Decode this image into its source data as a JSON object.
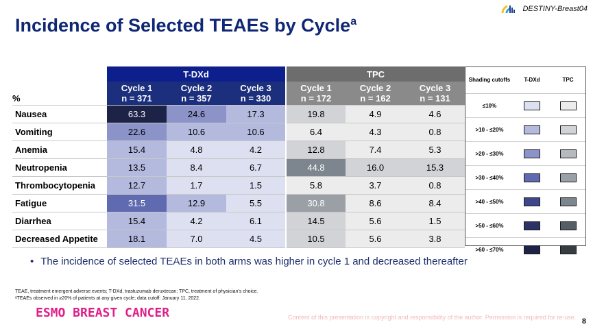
{
  "brand": {
    "name": "DESTINY-Breast04",
    "logo_colors": [
      "#f2c22e",
      "#3aa0d8",
      "#1a3d8f"
    ]
  },
  "title": {
    "main": "Incidence of Selected TEAEs by Cycle",
    "superscript": "a"
  },
  "table": {
    "unit_label": "%",
    "arms": [
      {
        "name": "T-DXd",
        "cycles": [
          {
            "label": "Cycle 1",
            "n": "n = 371"
          },
          {
            "label": "Cycle 2",
            "n": "n = 357"
          },
          {
            "label": "Cycle 3",
            "n": "n = 330"
          }
        ]
      },
      {
        "name": "TPC",
        "cycles": [
          {
            "label": "Cycle 1",
            "n": "n = 172"
          },
          {
            "label": "Cycle 2",
            "n": "n = 162"
          },
          {
            "label": "Cycle 3",
            "n": "n = 131"
          }
        ]
      }
    ],
    "rows": [
      {
        "event": "Nausea",
        "tdxd": [
          "63.3",
          "24.6",
          "17.3"
        ],
        "tpc": [
          "19.8",
          "4.9",
          "4.6"
        ]
      },
      {
        "event": "Vomiting",
        "tdxd": [
          "22.6",
          "10.6",
          "10.6"
        ],
        "tpc": [
          "6.4",
          "4.3",
          "0.8"
        ]
      },
      {
        "event": "Anemia",
        "tdxd": [
          "15.4",
          "4.8",
          "4.2"
        ],
        "tpc": [
          "12.8",
          "7.4",
          "5.3"
        ]
      },
      {
        "event": "Neutropenia",
        "tdxd": [
          "13.5",
          "8.4",
          "6.7"
        ],
        "tpc": [
          "44.8",
          "16.0",
          "15.3"
        ]
      },
      {
        "event": "Thrombocytopenia",
        "tdxd": [
          "12.7",
          "1.7",
          "1.5"
        ],
        "tpc": [
          "5.8",
          "3.7",
          "0.8"
        ]
      },
      {
        "event": "Fatigue",
        "tdxd": [
          "31.5",
          "12.9",
          "5.5"
        ],
        "tpc": [
          "30.8",
          "8.6",
          "8.4"
        ]
      },
      {
        "event": "Diarrhea",
        "tdxd": [
          "15.4",
          "4.2",
          "6.1"
        ],
        "tpc": [
          "14.5",
          "5.6",
          "1.5"
        ]
      },
      {
        "event": "Decreased Appetite",
        "tdxd": [
          "18.1",
          "7.0",
          "4.5"
        ],
        "tpc": [
          "10.5",
          "5.6",
          "3.8"
        ]
      }
    ]
  },
  "legend": {
    "headers": [
      "Shading cutoffs",
      "T-DXd",
      "TPC"
    ],
    "rows": [
      {
        "label": "≤10%",
        "tdxd": "#dde0f0",
        "tpc": "#ececec"
      },
      {
        "label": ">10 - ≤20%",
        "tdxd": "#b4b9de",
        "tpc": "#d2d3d6"
      },
      {
        "label": ">20 - ≤30%",
        "tdxd": "#8b93c9",
        "tpc": "#b6b9bd"
      },
      {
        "label": ">30 - ≤40%",
        "tdxd": "#606ab0",
        "tpc": "#9ba0a7"
      },
      {
        "label": ">40 - ≤50%",
        "tdxd": "#3e4789",
        "tpc": "#7d858e"
      },
      {
        "label": ">50 - ≤60%",
        "tdxd": "#2b3266",
        "tpc": "#555d65"
      },
      {
        "label": ">60 - ≤70%",
        "tdxd": "#1d2346",
        "tpc": "#353c42"
      }
    ]
  },
  "bullet": "The incidence of selected TEAEs in both arms was higher in cycle 1 and decreased thereafter",
  "footnotes": [
    "TEAE, treatment emergent adverse events; T-DXd, trastuzumab deruxtecan; TPC, treatment of physician’s choice.",
    "ᵃTEAEs observed in ≥20% of patients at any given cycle; data cutoff: January 11, 2022."
  ],
  "congress": "ESMO BREAST CANCER",
  "copyright": "Content of this presentation is copyright and responsibility of the author. Permission is required for re-use.",
  "page_number": "8"
}
